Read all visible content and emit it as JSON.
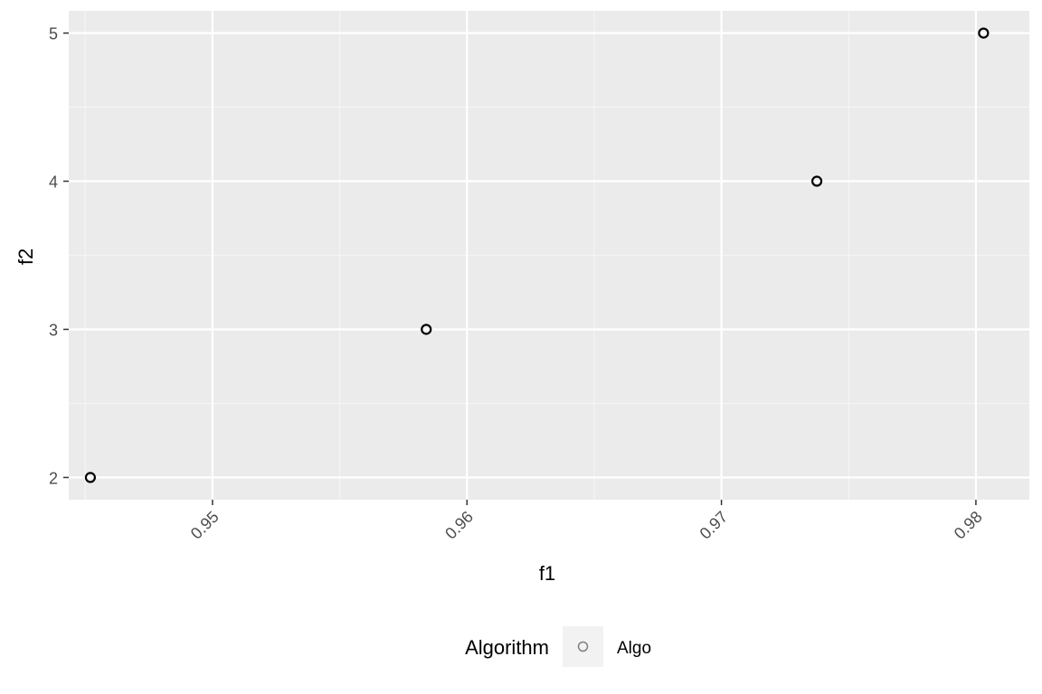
{
  "chart_data": {
    "type": "scatter",
    "title": "",
    "xlabel": "f1",
    "ylabel": "f2",
    "xlim": [
      0.94435,
      0.9821
    ],
    "ylim": [
      1.85,
      5.15
    ],
    "x_ticks": [
      0.95,
      0.96,
      0.97,
      0.98
    ],
    "x_tick_labels": [
      "0.95",
      "0.96",
      "0.97",
      "0.98"
    ],
    "y_ticks": [
      2,
      3,
      4,
      5
    ],
    "y_tick_labels": [
      "2",
      "3",
      "4",
      "5"
    ],
    "grid": true,
    "legend": {
      "position": "bottom",
      "title": "Algorithm",
      "entries": [
        "Algo"
      ]
    },
    "series": [
      {
        "name": "Algo",
        "x": [
          0.9452,
          0.9584,
          0.97375,
          0.9803
        ],
        "y": [
          2,
          3,
          4,
          5
        ],
        "marker": "open-circle",
        "color": "#000000"
      }
    ],
    "colors": {
      "panel_background": "#ebebeb",
      "grid_major": "#ffffff",
      "grid_minor": "#f5f5f5",
      "axis_text": "#4d4d4d",
      "axis_title": "#000000",
      "legend_key_background": "#f2f2f2",
      "legend_key_marker": "#7f7f7f"
    }
  }
}
